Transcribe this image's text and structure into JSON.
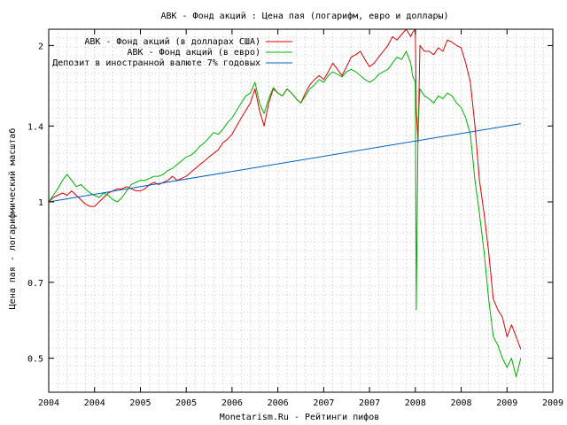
{
  "chart_data": {
    "type": "line",
    "title": "АВК - Фонд акций : Цена пая (логарифм, евро и доллары)",
    "xlabel": "Monetarism.Ru - Рейтинги пифов",
    "ylabel": "Цена пая - логарифмический масштаб",
    "y_scale": "log",
    "ylim": [
      0.43,
      2.15
    ],
    "xlim": [
      2004.0,
      2009.5
    ],
    "x_ticks": [
      {
        "x": 2004.0,
        "label": "2004"
      },
      {
        "x": 2004.5,
        "label": "2004"
      },
      {
        "x": 2005.0,
        "label": "2005"
      },
      {
        "x": 2005.5,
        "label": "2005"
      },
      {
        "x": 2006.0,
        "label": "2006"
      },
      {
        "x": 2006.5,
        "label": "2006"
      },
      {
        "x": 2007.0,
        "label": "2007"
      },
      {
        "x": 2007.5,
        "label": "2007"
      },
      {
        "x": 2008.0,
        "label": "2008"
      },
      {
        "x": 2008.5,
        "label": "2008"
      },
      {
        "x": 2009.0,
        "label": "2009"
      },
      {
        "x": 2009.5,
        "label": "2009"
      }
    ],
    "y_ticks": [
      {
        "y": 0.5,
        "label": "0.5"
      },
      {
        "y": 0.7,
        "label": "0.7"
      },
      {
        "y": 1.0,
        "label": "1"
      },
      {
        "y": 1.4,
        "label": "1.4"
      },
      {
        "y": 2.0,
        "label": "2"
      }
    ],
    "grid": true,
    "legend_position": "top-right",
    "series": [
      {
        "name": "АВК - Фонд акций (в долларах США)",
        "color": "#e00000",
        "x": [
          2004.0,
          2004.05,
          2004.1,
          2004.15,
          2004.2,
          2004.25,
          2004.3,
          2004.35,
          2004.4,
          2004.45,
          2004.5,
          2004.55,
          2004.6,
          2004.65,
          2004.7,
          2004.75,
          2004.8,
          2004.85,
          2004.9,
          2004.95,
          2005.0,
          2005.05,
          2005.1,
          2005.15,
          2005.2,
          2005.25,
          2005.3,
          2005.35,
          2005.4,
          2005.45,
          2005.5,
          2005.55,
          2005.6,
          2005.65,
          2005.7,
          2005.75,
          2005.8,
          2005.85,
          2005.9,
          2005.95,
          2006.0,
          2006.05,
          2006.1,
          2006.15,
          2006.2,
          2006.25,
          2006.3,
          2006.35,
          2006.4,
          2006.45,
          2006.5,
          2006.55,
          2006.6,
          2006.65,
          2006.7,
          2006.75,
          2006.8,
          2006.85,
          2006.9,
          2006.95,
          2007.0,
          2007.05,
          2007.1,
          2007.15,
          2007.2,
          2007.25,
          2007.3,
          2007.35,
          2007.4,
          2007.45,
          2007.5,
          2007.55,
          2007.6,
          2007.65,
          2007.7,
          2007.75,
          2007.8,
          2007.85,
          2007.9,
          2007.95,
          2007.97,
          2008.0,
          2008.01,
          2008.03,
          2008.05,
          2008.1,
          2008.15,
          2008.2,
          2008.25,
          2008.3,
          2008.35,
          2008.4,
          2008.45,
          2008.5,
          2008.55,
          2008.6,
          2008.65,
          2008.7,
          2008.75,
          2008.8,
          2008.85,
          2008.9,
          2008.95,
          2009.0,
          2009.05,
          2009.1,
          2009.15
        ],
        "values": [
          1.0,
          1.02,
          1.03,
          1.04,
          1.03,
          1.05,
          1.03,
          1.01,
          0.99,
          0.98,
          0.98,
          1.0,
          1.02,
          1.04,
          1.05,
          1.06,
          1.06,
          1.07,
          1.06,
          1.05,
          1.05,
          1.06,
          1.08,
          1.09,
          1.08,
          1.09,
          1.1,
          1.12,
          1.1,
          1.11,
          1.12,
          1.14,
          1.16,
          1.18,
          1.2,
          1.22,
          1.24,
          1.26,
          1.3,
          1.32,
          1.35,
          1.4,
          1.45,
          1.5,
          1.55,
          1.65,
          1.5,
          1.4,
          1.55,
          1.65,
          1.62,
          1.6,
          1.65,
          1.62,
          1.58,
          1.55,
          1.62,
          1.68,
          1.72,
          1.75,
          1.72,
          1.78,
          1.85,
          1.8,
          1.75,
          1.82,
          1.9,
          1.92,
          1.95,
          1.88,
          1.82,
          1.85,
          1.9,
          1.95,
          2.0,
          2.08,
          2.05,
          2.1,
          2.15,
          2.08,
          2.12,
          2.15,
          1.5,
          1.3,
          2.0,
          1.95,
          1.95,
          1.92,
          1.98,
          1.95,
          2.05,
          2.03,
          2.0,
          1.98,
          1.85,
          1.7,
          1.4,
          1.1,
          0.95,
          0.8,
          0.65,
          0.62,
          0.6,
          0.55,
          0.58,
          0.55,
          0.52
        ]
      },
      {
        "name": "АВК - Фонд акций (в евро)",
        "color": "#00b000",
        "x": [
          2004.0,
          2004.05,
          2004.1,
          2004.15,
          2004.2,
          2004.25,
          2004.3,
          2004.35,
          2004.4,
          2004.45,
          2004.5,
          2004.55,
          2004.6,
          2004.65,
          2004.7,
          2004.75,
          2004.8,
          2004.85,
          2004.9,
          2004.95,
          2005.0,
          2005.05,
          2005.1,
          2005.15,
          2005.2,
          2005.25,
          2005.3,
          2005.35,
          2005.4,
          2005.45,
          2005.5,
          2005.55,
          2005.6,
          2005.65,
          2005.7,
          2005.75,
          2005.8,
          2005.85,
          2005.9,
          2005.95,
          2006.0,
          2006.05,
          2006.1,
          2006.15,
          2006.2,
          2006.25,
          2006.3,
          2006.35,
          2006.4,
          2006.45,
          2006.5,
          2006.55,
          2006.6,
          2006.65,
          2006.7,
          2006.75,
          2006.8,
          2006.85,
          2006.9,
          2006.95,
          2007.0,
          2007.05,
          2007.1,
          2007.15,
          2007.2,
          2007.25,
          2007.3,
          2007.35,
          2007.4,
          2007.45,
          2007.5,
          2007.55,
          2007.6,
          2007.65,
          2007.7,
          2007.75,
          2007.8,
          2007.85,
          2007.9,
          2007.95,
          2007.97,
          2008.0,
          2008.01,
          2008.03,
          2008.05,
          2008.1,
          2008.15,
          2008.2,
          2008.25,
          2008.3,
          2008.35,
          2008.4,
          2008.45,
          2008.5,
          2008.55,
          2008.6,
          2008.65,
          2008.7,
          2008.75,
          2008.8,
          2008.85,
          2008.9,
          2008.95,
          2009.0,
          2009.05,
          2009.1,
          2009.15
        ],
        "values": [
          1.0,
          1.03,
          1.06,
          1.1,
          1.13,
          1.1,
          1.07,
          1.08,
          1.06,
          1.04,
          1.03,
          1.02,
          1.04,
          1.03,
          1.01,
          1.0,
          1.02,
          1.05,
          1.08,
          1.09,
          1.1,
          1.1,
          1.11,
          1.12,
          1.12,
          1.13,
          1.15,
          1.16,
          1.18,
          1.2,
          1.22,
          1.23,
          1.25,
          1.28,
          1.3,
          1.33,
          1.36,
          1.35,
          1.38,
          1.42,
          1.45,
          1.5,
          1.55,
          1.6,
          1.62,
          1.7,
          1.55,
          1.48,
          1.58,
          1.66,
          1.62,
          1.6,
          1.65,
          1.62,
          1.58,
          1.55,
          1.6,
          1.65,
          1.68,
          1.72,
          1.7,
          1.75,
          1.78,
          1.76,
          1.74,
          1.78,
          1.8,
          1.78,
          1.75,
          1.72,
          1.7,
          1.72,
          1.76,
          1.78,
          1.8,
          1.85,
          1.9,
          1.88,
          1.95,
          1.85,
          1.75,
          1.7,
          0.62,
          1.4,
          1.65,
          1.6,
          1.58,
          1.55,
          1.6,
          1.58,
          1.62,
          1.6,
          1.55,
          1.52,
          1.45,
          1.35,
          1.1,
          0.95,
          0.8,
          0.65,
          0.55,
          0.53,
          0.5,
          0.48,
          0.5,
          0.46,
          0.5
        ]
      },
      {
        "name": "Депозит в иностранной валюте 7% годовых",
        "color": "#0060c0",
        "x": [
          2004.0,
          2009.15
        ],
        "values": [
          1.0,
          1.415
        ]
      }
    ]
  }
}
